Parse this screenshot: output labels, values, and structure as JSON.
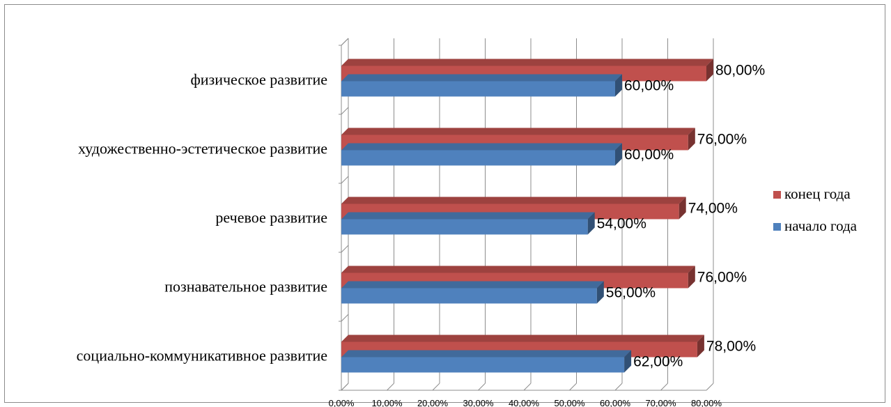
{
  "chart_data": {
    "type": "bar",
    "orientation": "horizontal",
    "categories": [
      "социально-коммуникативное развитие",
      "познавательное развитие",
      "речевое развитие",
      "художественно-эстетическое развитие",
      "физическое развитие"
    ],
    "series": [
      {
        "name": "начало года",
        "color": "#4F81BD",
        "values": [
          62,
          56,
          54,
          60,
          60
        ],
        "labels": [
          "62,00%",
          "56,00%",
          "54,00%",
          "60,00%",
          "60,00%"
        ]
      },
      {
        "name": "конец года",
        "color": "#C0504D",
        "values": [
          78,
          76,
          74,
          76,
          80
        ],
        "labels": [
          "78,00%",
          "76,00%",
          "74,00%",
          "76,00%",
          "80,00%"
        ]
      }
    ],
    "xlim": [
      0,
      80
    ],
    "xticks": [
      "0,00%",
      "10,00%",
      "20,00%",
      "30,00%",
      "40,00%",
      "50,00%",
      "60,00%",
      "70,00%",
      "80,00%"
    ],
    "grid": true,
    "legend_position": "right",
    "style": "3d"
  }
}
